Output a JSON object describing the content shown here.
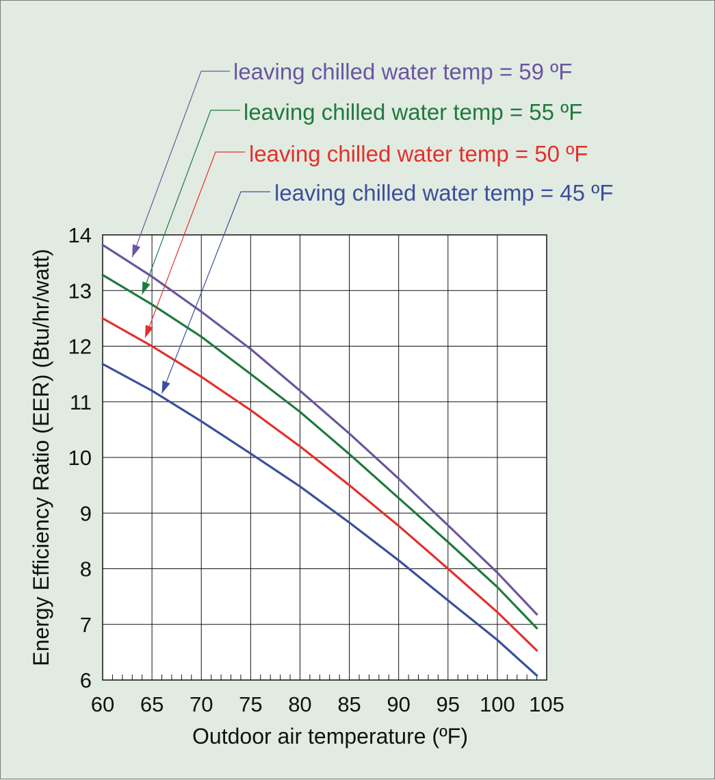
{
  "chart_data": {
    "type": "line",
    "title": "",
    "xlabel": "Outdoor air temperature (ºF)",
    "ylabel": "Energy Efficiency Ratio (EER)  (Btu/hr/watt)",
    "xlim": [
      60,
      105
    ],
    "ylim": [
      6,
      14
    ],
    "xticks": [
      60,
      65,
      70,
      75,
      80,
      85,
      90,
      95,
      100,
      105
    ],
    "yticks": [
      6,
      7,
      8,
      9,
      10,
      11,
      12,
      13,
      14
    ],
    "xtick_labels": [
      "60",
      "65",
      "70",
      "75",
      "80",
      "85",
      "90",
      "95",
      "100",
      "105"
    ],
    "ytick_labels": [
      "6",
      "7",
      "8",
      "9",
      "10",
      "11",
      "12",
      "13",
      "14"
    ],
    "grid": true,
    "series": [
      {
        "name": "leaving chilled water temp = 59 ºF",
        "color": "#6a55a0",
        "x": [
          60,
          65,
          70,
          75,
          80,
          85,
          90,
          95,
          100,
          104
        ],
        "y": [
          13.82,
          13.25,
          12.62,
          11.95,
          11.2,
          10.43,
          9.62,
          8.78,
          7.93,
          7.18
        ],
        "arrow_point": [
          63,
          13.6
        ]
      },
      {
        "name": "leaving chilled water temp = 55 ºF",
        "color": "#1e7a3e",
        "x": [
          60,
          65,
          70,
          75,
          80,
          85,
          90,
          95,
          100,
          104
        ],
        "y": [
          13.28,
          12.75,
          12.17,
          11.5,
          10.82,
          10.06,
          9.27,
          8.48,
          7.67,
          6.93
        ],
        "arrow_point": [
          64,
          12.93
        ]
      },
      {
        "name": "leaving chilled water temp = 50 ºF",
        "color": "#e2302b",
        "x": [
          60,
          65,
          70,
          75,
          80,
          85,
          90,
          95,
          100,
          104
        ],
        "y": [
          12.5,
          12.0,
          11.45,
          10.85,
          10.2,
          9.5,
          8.77,
          8.0,
          7.22,
          6.53
        ],
        "arrow_point": [
          64.3,
          12.15
        ]
      },
      {
        "name": "leaving chilled water temp = 45 ºF",
        "color": "#3a4f9c",
        "x": [
          60,
          65,
          70,
          75,
          80,
          85,
          90,
          95,
          100,
          104
        ],
        "y": [
          11.68,
          11.2,
          10.65,
          10.07,
          9.48,
          8.83,
          8.15,
          7.43,
          6.72,
          6.08
        ],
        "arrow_point": [
          66,
          11.15
        ]
      }
    ]
  },
  "frame_colors": {
    "background": "#e2ebe1",
    "plot_background": "#ffffff",
    "grid": "#111111"
  }
}
